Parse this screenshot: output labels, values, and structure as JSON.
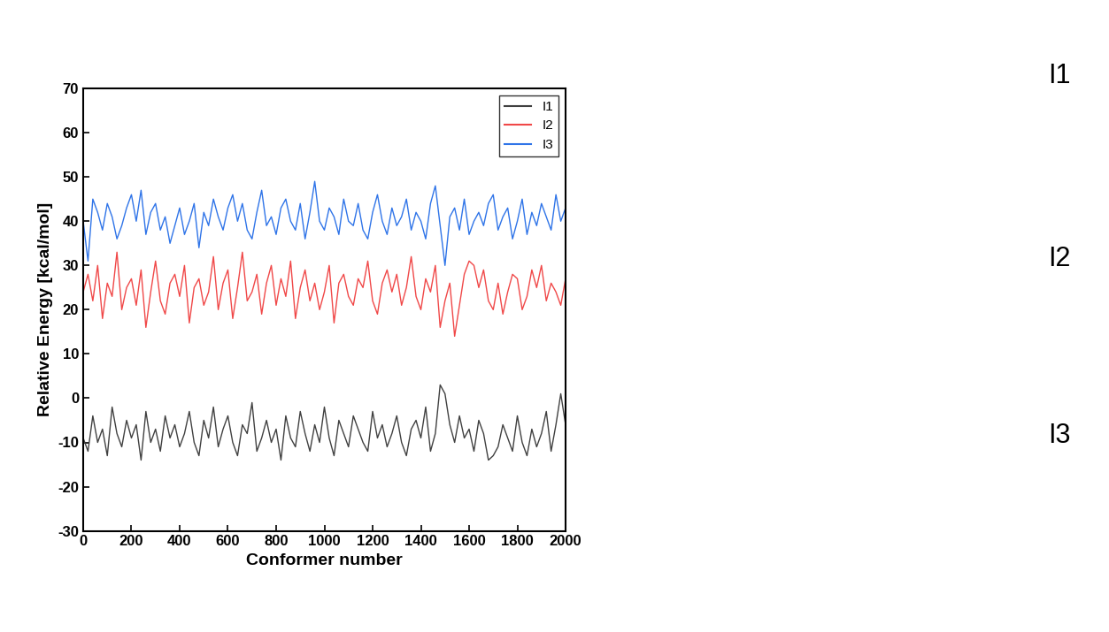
{
  "chart_data": {
    "type": "line",
    "xlabel": "Conformer number",
    "ylabel": "Relative Energy [kcal/mol]",
    "x": [
      0,
      20,
      40,
      60,
      80,
      100,
      120,
      140,
      160,
      180,
      200,
      220,
      240,
      260,
      280,
      300,
      320,
      340,
      360,
      380,
      400,
      420,
      440,
      460,
      480,
      500,
      520,
      540,
      560,
      580,
      600,
      620,
      640,
      660,
      680,
      700,
      720,
      740,
      760,
      780,
      800,
      820,
      840,
      860,
      880,
      900,
      920,
      940,
      960,
      980,
      1000,
      1020,
      1040,
      1060,
      1080,
      1100,
      1120,
      1140,
      1160,
      1180,
      1200,
      1220,
      1240,
      1260,
      1280,
      1300,
      1320,
      1340,
      1360,
      1380,
      1400,
      1420,
      1440,
      1460,
      1480,
      1500,
      1520,
      1540,
      1560,
      1580,
      1600,
      1620,
      1640,
      1660,
      1680,
      1700,
      1720,
      1740,
      1760,
      1780,
      1800,
      1820,
      1840,
      1860,
      1880,
      1900,
      1920,
      1940,
      1960,
      1980,
      2000
    ],
    "series": [
      {
        "name": "I1",
        "color": "#404040",
        "values": [
          -9,
          -12,
          -4,
          -10,
          -7,
          -13,
          -2,
          -8,
          -11,
          -5,
          -9,
          -6,
          -14,
          -3,
          -10,
          -7,
          -12,
          -4,
          -9,
          -6,
          -11,
          -8,
          -3,
          -10,
          -13,
          -5,
          -9,
          -2,
          -11,
          -7,
          -4,
          -10,
          -13,
          -6,
          -8,
          -1,
          -12,
          -9,
          -5,
          -10,
          -7,
          -14,
          -4,
          -9,
          -11,
          -3,
          -8,
          -12,
          -6,
          -10,
          -2,
          -9,
          -13,
          -5,
          -8,
          -11,
          -4,
          -7,
          -10,
          -12,
          -3,
          -9,
          -6,
          -11,
          -8,
          -4,
          -10,
          -13,
          -7,
          -5,
          -9,
          -2,
          -12,
          -8,
          3,
          1,
          -6,
          -10,
          -4,
          -9,
          -7,
          -12,
          -5,
          -8,
          -14,
          -13,
          -11,
          -6,
          -9,
          -12,
          -4,
          -10,
          -13,
          -7,
          -11,
          -8,
          -3,
          -12,
          -6,
          1,
          -6
        ]
      },
      {
        "name": "I2",
        "color": "#f04848",
        "values": [
          24,
          28,
          22,
          30,
          18,
          26,
          23,
          33,
          20,
          25,
          27,
          21,
          29,
          16,
          24,
          31,
          22,
          19,
          26,
          28,
          23,
          30,
          17,
          25,
          27,
          21,
          24,
          32,
          20,
          26,
          29,
          18,
          25,
          33,
          22,
          24,
          28,
          19,
          26,
          30,
          21,
          27,
          23,
          31,
          18,
          25,
          29,
          22,
          26,
          20,
          24,
          30,
          17,
          26,
          28,
          23,
          21,
          27,
          25,
          31,
          22,
          19,
          26,
          29,
          24,
          28,
          21,
          25,
          32,
          23,
          20,
          27,
          24,
          30,
          16,
          22,
          26,
          14,
          21,
          28,
          31,
          30,
          25,
          29,
          22,
          20,
          26,
          19,
          24,
          28,
          27,
          20,
          23,
          29,
          25,
          30,
          22,
          26,
          24,
          21,
          27
        ]
      },
      {
        "name": "I3",
        "color": "#2f74e8",
        "values": [
          40,
          31,
          45,
          42,
          38,
          44,
          41,
          36,
          39,
          43,
          46,
          40,
          47,
          37,
          42,
          44,
          38,
          41,
          35,
          39,
          43,
          37,
          40,
          44,
          34,
          42,
          39,
          45,
          41,
          38,
          43,
          46,
          40,
          44,
          38,
          36,
          42,
          47,
          39,
          41,
          37,
          43,
          45,
          40,
          38,
          44,
          36,
          42,
          49,
          40,
          38,
          43,
          41,
          37,
          45,
          40,
          39,
          44,
          38,
          36,
          42,
          46,
          40,
          37,
          43,
          39,
          41,
          45,
          38,
          42,
          40,
          36,
          44,
          48,
          39,
          30,
          41,
          43,
          38,
          45,
          37,
          40,
          42,
          39,
          44,
          46,
          38,
          41,
          43,
          36,
          40,
          45,
          37,
          42,
          39,
          44,
          41,
          38,
          46,
          40,
          43
        ]
      }
    ],
    "xlim": [
      0,
      2000
    ],
    "xticks": [
      0,
      200,
      400,
      600,
      800,
      1000,
      1200,
      1400,
      1600,
      1800,
      2000
    ],
    "ylim": [
      -30,
      70
    ],
    "yticks": [
      -30,
      -20,
      -10,
      0,
      10,
      20,
      30,
      40,
      50,
      60,
      70
    ],
    "grid": false,
    "legend": "upper right",
    "annotations": [
      "I1",
      "I2",
      "I3"
    ]
  }
}
